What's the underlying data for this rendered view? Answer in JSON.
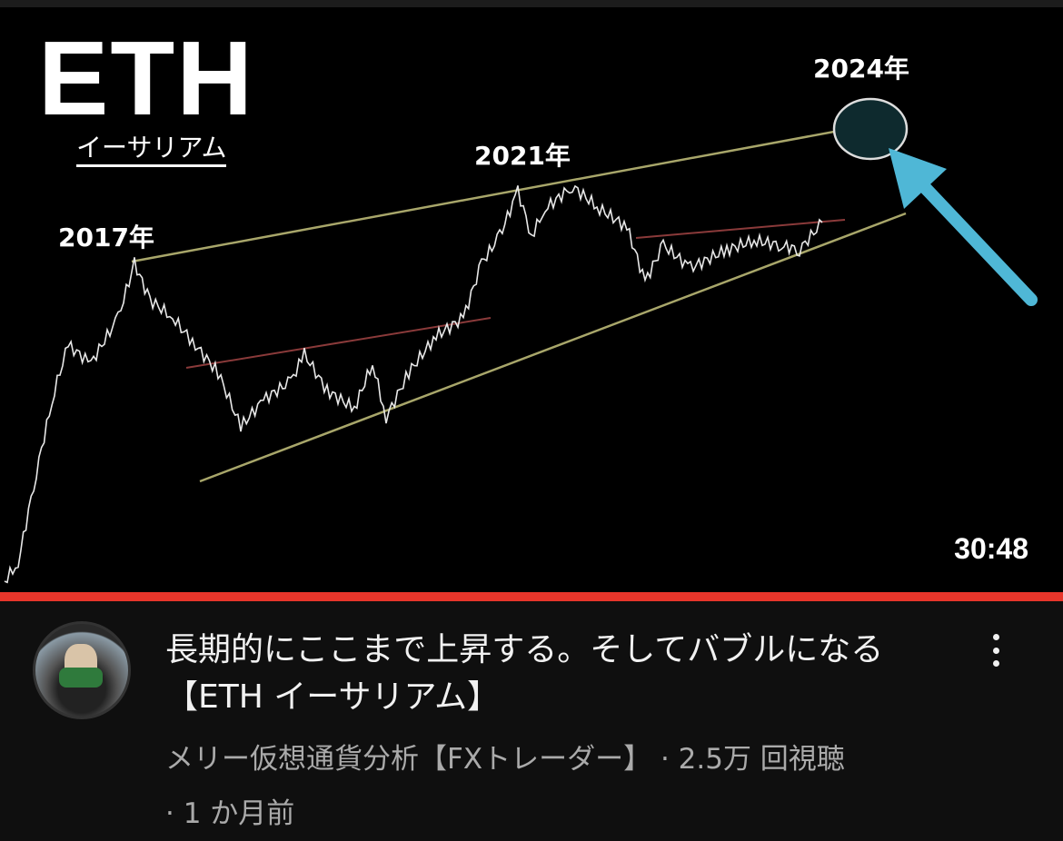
{
  "thumbnail": {
    "logo_text": "ETH",
    "logo_subtitle": "イーサリアム",
    "year_labels": [
      "2017年",
      "2021年",
      "2024年"
    ],
    "duration": "30:48",
    "colors": {
      "trendline": "#a8a66a",
      "resistance": "#8a3a3a",
      "arrow": "#4fb7d6"
    }
  },
  "progress": {
    "watched_percent": 100,
    "color": "#e8352a"
  },
  "video": {
    "title": "長期的にここまで上昇する。そしてバブルになる【ETH イーサリアム】",
    "channel": "メリー仮想通貨分析【FXトレーダー】",
    "views": "· 2.5万 回視聴",
    "age": "· 1 か月前"
  },
  "icons": {
    "menu": "more-vert-icon"
  }
}
